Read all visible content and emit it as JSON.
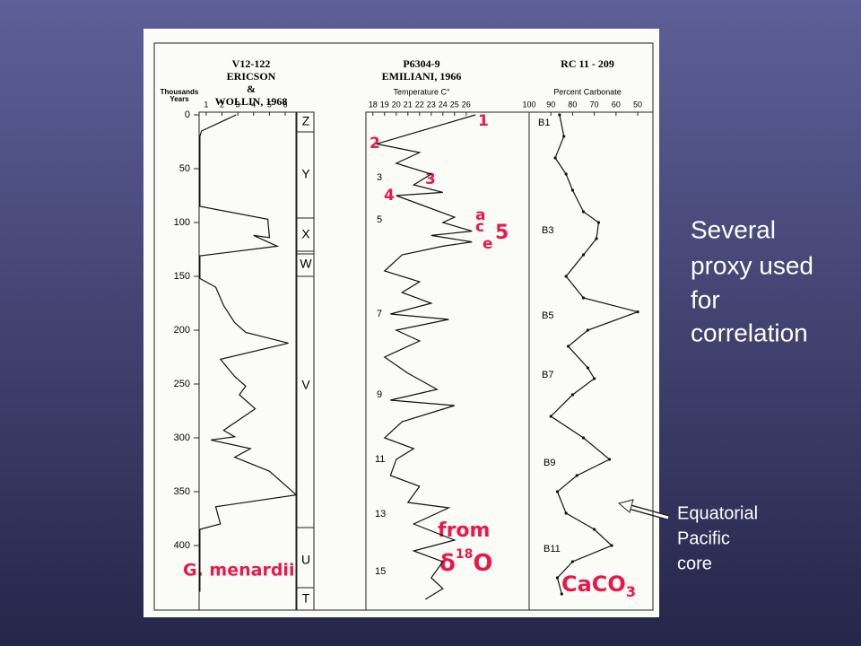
{
  "slide": {
    "caption": [
      "Several",
      "proxy used",
      "for",
      "correlation"
    ],
    "pointer": [
      "Equatorial",
      "Pacific",
      "core"
    ]
  },
  "figure": {
    "age_label": [
      "Thousands",
      "Years"
    ],
    "zones": [
      "Z",
      "Y",
      "X",
      "W",
      "V",
      "U",
      "T"
    ],
    "stages": [
      "3",
      "5",
      "7",
      "9",
      "11",
      "13",
      "15"
    ],
    "red_marks": [
      "1",
      "2",
      "3",
      "4",
      "a",
      "c",
      "e",
      "5"
    ],
    "bands": [
      "B1",
      "B3",
      "B5",
      "B7",
      "B9",
      "B11"
    ],
    "notes": {
      "menardii": "G. menardii",
      "from": "from",
      "isotope": "δ",
      "isotope_sup": "18",
      "isotope_o": "O",
      "caco": "CaCO",
      "caco_sub": "3"
    }
  },
  "chart_data": [
    {
      "type": "line",
      "title": [
        "V12-122",
        "ERICSON",
        "&",
        "WOLLIN, 1968"
      ],
      "color": "#111111",
      "y": [
        0,
        15,
        20,
        85,
        97,
        114,
        112,
        122,
        131,
        152,
        160,
        177,
        193,
        202,
        212,
        227,
        243,
        252,
        260,
        273,
        281,
        293,
        299,
        302,
        310,
        318,
        331,
        353,
        364,
        380,
        385,
        428,
        443
      ],
      "values": [
        2.9,
        0.7,
        0.6,
        0.6,
        4.9,
        5.0,
        4.0,
        5.5,
        0.6,
        0.6,
        1.6,
        2.1,
        2.8,
        3.5,
        6.2,
        1.9,
        2.8,
        3.5,
        3.1,
        4.1,
        3.3,
        2.1,
        2.8,
        1.3,
        3.8,
        2.8,
        5.0,
        6.7,
        1.6,
        1.9,
        0.6,
        0.6,
        0.6
      ],
      "xlim": [
        0.55,
        6.68
      ],
      "xticks": [
        1,
        2,
        3,
        4,
        5,
        6
      ],
      "ylim": [
        0,
        460
      ],
      "yticks": [
        0,
        50,
        100,
        150,
        200,
        250,
        300,
        350,
        400
      ]
    },
    {
      "type": "line",
      "title": [
        "P6304-9",
        "EMILIANI, 1966"
      ],
      "xlabel": "Temperature C°",
      "color": "#111111",
      "y": [
        0,
        27,
        35,
        45,
        55,
        65,
        72,
        75,
        85,
        95,
        100,
        108,
        112,
        118,
        122,
        130,
        145,
        155,
        165,
        175,
        185,
        190,
        200,
        210,
        225,
        240,
        255,
        265,
        270,
        285,
        300,
        310,
        320,
        335,
        345,
        360,
        365,
        380,
        395,
        405,
        415,
        430,
        440,
        450
      ],
      "values": [
        26.8,
        18.3,
        22,
        20,
        23,
        21.5,
        24,
        20,
        22.5,
        25,
        24,
        26.5,
        23,
        26.5,
        24,
        20.5,
        19,
        22,
        20.5,
        23,
        19.5,
        24.5,
        20,
        22,
        19,
        21,
        23.5,
        19.5,
        25,
        20.5,
        19,
        21.5,
        20,
        19.5,
        22,
        21,
        24.5,
        21.5,
        25,
        21.5,
        24,
        23,
        24,
        22.5
      ],
      "xlim": [
        17.4,
        31.4
      ],
      "xticks": [
        18,
        19,
        20,
        21,
        22,
        23,
        24,
        25,
        26
      ],
      "ylim": [
        0,
        460
      ]
    },
    {
      "type": "line",
      "title": [
        "RC 11 - 209"
      ],
      "xlabel": "Percent Carbonate",
      "color": "#111111",
      "y": [
        0,
        20,
        40,
        55,
        70,
        90,
        100,
        115,
        130,
        150,
        170,
        183,
        200,
        215,
        235,
        245,
        260,
        280,
        300,
        320,
        335,
        350,
        370,
        385,
        400,
        415,
        430,
        445
      ],
      "values": [
        86,
        84,
        88,
        83,
        80,
        75,
        68,
        69,
        75,
        83,
        75,
        50,
        73,
        82,
        73,
        70,
        80,
        90,
        75,
        63,
        78,
        87,
        83,
        70,
        62,
        80,
        87,
        85
      ],
      "xlim": [
        100,
        43
      ],
      "xticks": [
        100,
        90,
        80,
        70,
        60,
        50
      ],
      "ylim": [
        0,
        460
      ]
    }
  ]
}
